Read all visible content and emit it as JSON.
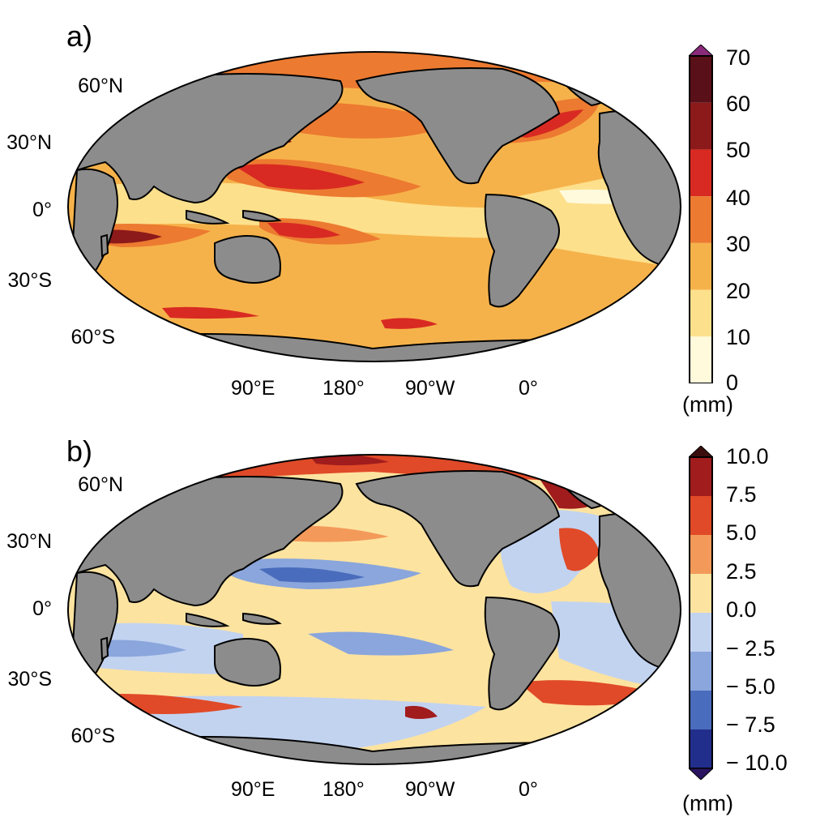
{
  "panels": [
    {
      "label": "a)",
      "lat_labels": [
        "60°N",
        "30°N",
        "0°",
        "30°S",
        "60°S"
      ],
      "lon_labels": [
        "90°E",
        "180°",
        "90°W",
        "0°"
      ],
      "colorbar": {
        "ticks": [
          "70",
          "60",
          "50",
          "40",
          "30",
          "20",
          "10",
          "0"
        ],
        "unit": "(mm)",
        "colors": [
          "#5a1018",
          "#8c1a1a",
          "#d82a22",
          "#ec7a30",
          "#f6b24a",
          "#fde08c",
          "#fffadc"
        ],
        "over_color": "#8a2a7a"
      }
    },
    {
      "label": "b)",
      "lat_labels": [
        "60°N",
        "30°N",
        "0°",
        "30°S",
        "60°S"
      ],
      "lon_labels": [
        "90°E",
        "180°",
        "90°W",
        "0°"
      ],
      "colorbar": {
        "ticks": [
          "10.0",
          "7.5",
          "5.0",
          "2.5",
          "0.0",
          "− 2.5",
          "− 5.0",
          "− 7.5",
          "− 10.0"
        ],
        "unit": "(mm)",
        "colors": [
          "#a11c1c",
          "#e04a28",
          "#f39a5a",
          "#fde3a0",
          "#c2d3f0",
          "#8aa6dc",
          "#4a6cbc",
          "#222e8c"
        ],
        "over_color": "#3a0e0e",
        "under_color": "#2a1460"
      }
    }
  ],
  "land_color": "#8c8c8c"
}
